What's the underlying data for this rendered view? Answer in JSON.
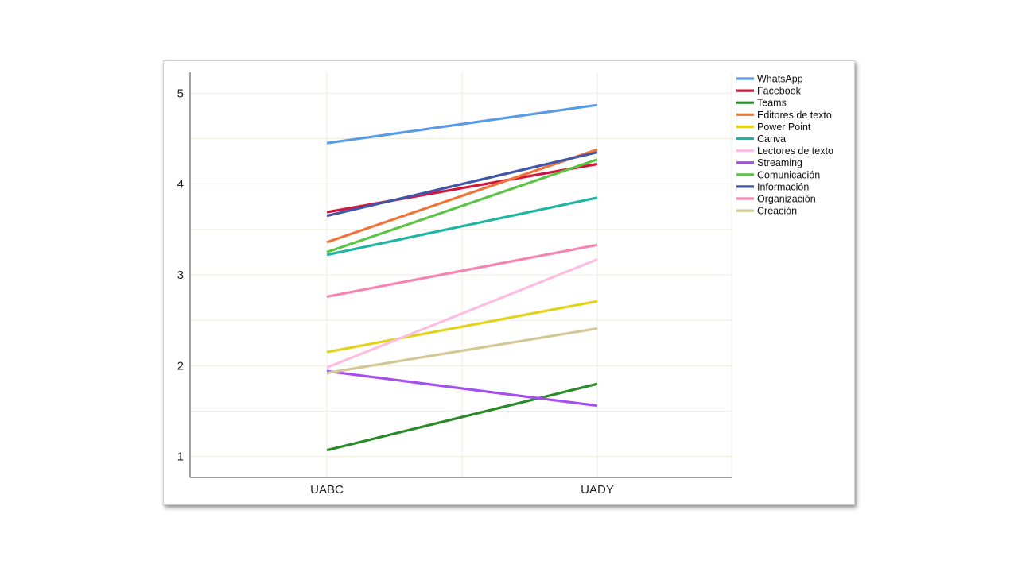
{
  "chart_data": {
    "type": "line",
    "categories": [
      "UABC",
      "UADY"
    ],
    "ylim": [
      0.77,
      5.23
    ],
    "yticks": [
      "1",
      "2",
      "3",
      "4",
      "5"
    ],
    "grid": true,
    "legend_position": "top-right",
    "series": [
      {
        "name": "WhatsApp",
        "color": "#5b9be6",
        "values": [
          4.45,
          4.87
        ]
      },
      {
        "name": "Facebook",
        "color": "#d4143c",
        "values": [
          3.69,
          4.22
        ]
      },
      {
        "name": "Teams",
        "color": "#2a8a2a",
        "values": [
          1.07,
          1.8
        ]
      },
      {
        "name": "Editores de texto",
        "color": "#f07438",
        "values": [
          3.36,
          4.38
        ]
      },
      {
        "name": "Power Point",
        "color": "#e3d21c",
        "values": [
          2.15,
          2.71
        ]
      },
      {
        "name": "Canva",
        "color": "#1fb5a3",
        "values": [
          3.22,
          3.85
        ]
      },
      {
        "name": "Lectores de texto",
        "color": "#fbbde0",
        "values": [
          1.98,
          3.17
        ]
      },
      {
        "name": "Streaming",
        "color": "#a64ef0",
        "values": [
          1.94,
          1.56
        ]
      },
      {
        "name": "Comunicación",
        "color": "#5cc447",
        "values": [
          3.25,
          4.27
        ]
      },
      {
        "name": "Información",
        "color": "#4256a8",
        "values": [
          3.65,
          4.35
        ]
      },
      {
        "name": "Organización",
        "color": "#f584b2",
        "values": [
          2.76,
          3.33
        ]
      },
      {
        "name": "Creación",
        "color": "#d3c796",
        "values": [
          1.92,
          2.41
        ]
      }
    ]
  }
}
